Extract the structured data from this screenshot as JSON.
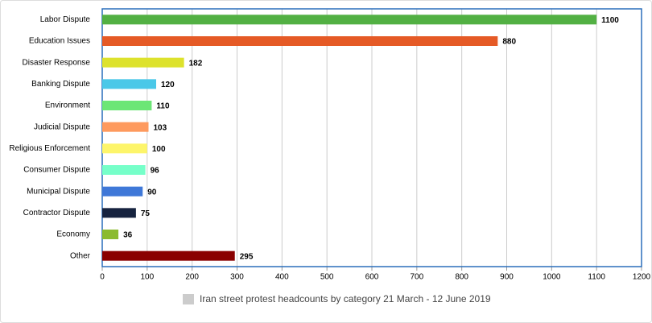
{
  "chart_data": {
    "type": "bar",
    "orientation": "horizontal",
    "categories": [
      "Labor Dispute",
      "Education Issues",
      "Disaster Response",
      "Banking Dispute",
      "Environment",
      "Judicial Dispute",
      "Religious Enforcement",
      "Consumer Dispute",
      "Municipal Dispute",
      "Contractor Dispute",
      "Economy",
      "Other"
    ],
    "series": [
      {
        "name": "Iran street protest headcounts by category 21 March - 12 June 2019",
        "color": "#cccccc",
        "values": [
          1100,
          880,
          182,
          120,
          110,
          103,
          100,
          96,
          90,
          75,
          36,
          295
        ],
        "colors": [
          "#52b043",
          "#e55a26",
          "#dde22c",
          "#4ac8e8",
          "#6ce676",
          "#fe9a5e",
          "#fdf56a",
          "#76ffc9",
          "#3f78d8",
          "#16233f",
          "#8bbb2f",
          "#8a0000"
        ]
      }
    ],
    "xlim": [
      0,
      1200
    ],
    "xticks": [
      0,
      100,
      200,
      300,
      400,
      500,
      600,
      700,
      800,
      900,
      1000,
      1100,
      1200
    ],
    "grid": true,
    "legend": "bottom"
  }
}
